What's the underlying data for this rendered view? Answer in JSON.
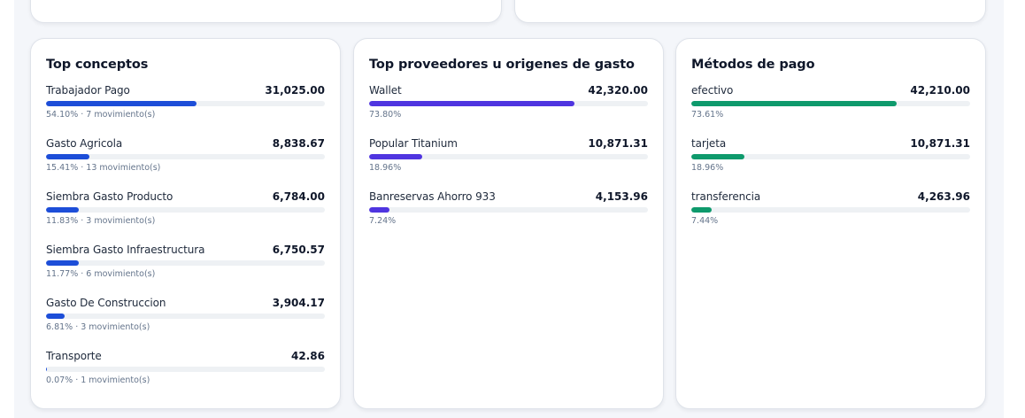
{
  "colors": {
    "conceptos": "#1d4ed8",
    "proveedores": "#4f35e0",
    "metodos": "#0e9a6c"
  },
  "cards": [
    {
      "title": "Top conceptos",
      "color_key": "conceptos",
      "rows": [
        {
          "label": "Trabajador Pago",
          "value": "31,025.00",
          "sub": "54.10% · 7 movimiento(s)",
          "pct": 54.1
        },
        {
          "label": "Gasto Agricola",
          "value": "8,838.67",
          "sub": "15.41% · 13 movimiento(s)",
          "pct": 15.41
        },
        {
          "label": "Siembra Gasto Producto",
          "value": "6,784.00",
          "sub": "11.83% · 3 movimiento(s)",
          "pct": 11.83
        },
        {
          "label": "Siembra Gasto Infraestructura",
          "value": "6,750.57",
          "sub": "11.77% · 6 movimiento(s)",
          "pct": 11.77
        },
        {
          "label": "Gasto De Construccion",
          "value": "3,904.17",
          "sub": "6.81% · 3 movimiento(s)",
          "pct": 6.81
        },
        {
          "label": "Transporte",
          "value": "42.86",
          "sub": "0.07% · 1 movimiento(s)",
          "pct": 0.07
        }
      ]
    },
    {
      "title": "Top proveedores u origenes de gasto",
      "color_key": "proveedores",
      "rows": [
        {
          "label": "Wallet",
          "value": "42,320.00",
          "sub": "73.80%",
          "pct": 73.8
        },
        {
          "label": "Popular Titanium",
          "value": "10,871.31",
          "sub": "18.96%",
          "pct": 18.96
        },
        {
          "label": "Banreservas Ahorro 933",
          "value": "4,153.96",
          "sub": "7.24%",
          "pct": 7.24
        }
      ]
    },
    {
      "title": "Métodos de pago",
      "color_key": "metodos",
      "rows": [
        {
          "label": "efectivo",
          "value": "42,210.00",
          "sub": "73.61%",
          "pct": 73.61
        },
        {
          "label": "tarjeta",
          "value": "10,871.31",
          "sub": "18.96%",
          "pct": 18.96
        },
        {
          "label": "transferencia",
          "value": "4,263.96",
          "sub": "7.44%",
          "pct": 7.44
        }
      ]
    }
  ]
}
